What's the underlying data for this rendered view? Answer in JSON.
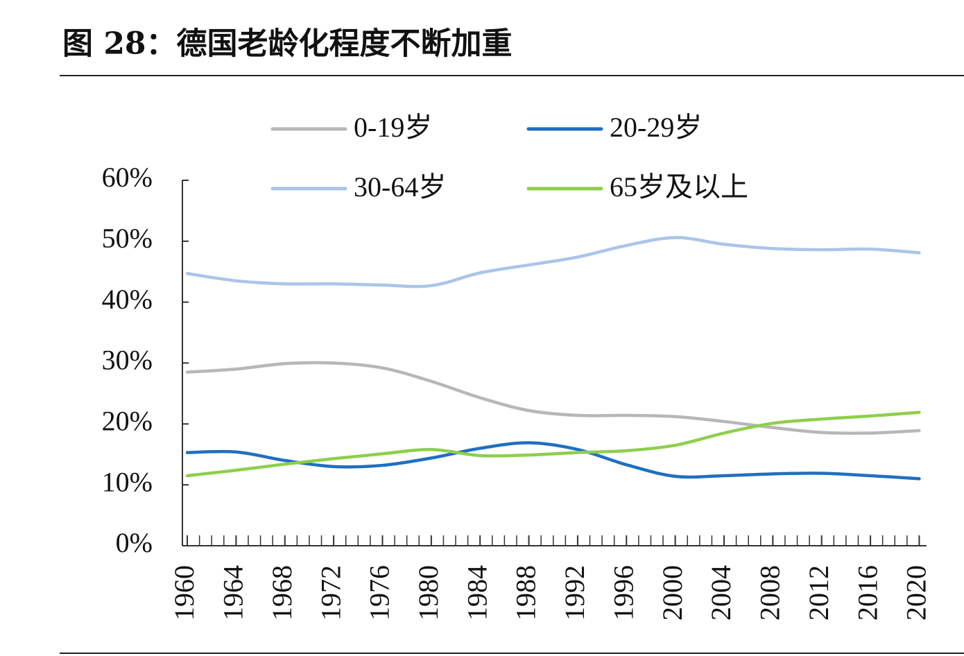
{
  "chart_data": {
    "type": "line",
    "title": "图 28：德国老龄化程度不断加重",
    "x": [
      1960,
      1964,
      1968,
      1972,
      1976,
      1980,
      1984,
      1988,
      1992,
      1996,
      2000,
      2004,
      2008,
      2012,
      2016,
      2020
    ],
    "series": [
      {
        "name": "0-19岁",
        "color": "#b7b7b7",
        "values": [
          28.5,
          29.0,
          29.9,
          30.0,
          29.2,
          27.0,
          24.3,
          22.2,
          21.4,
          21.4,
          21.2,
          20.4,
          19.4,
          18.6,
          18.5,
          18.9
        ]
      },
      {
        "name": "20-29岁",
        "color": "#1f6fc0",
        "values": [
          15.3,
          15.4,
          14.0,
          13.0,
          13.2,
          14.4,
          16.0,
          16.9,
          15.8,
          13.3,
          11.4,
          11.5,
          11.8,
          11.9,
          11.5,
          11.0
        ]
      },
      {
        "name": "30-64岁",
        "color": "#aac5e8",
        "values": [
          44.7,
          43.5,
          43.0,
          43.0,
          42.8,
          42.7,
          44.8,
          46.1,
          47.4,
          49.3,
          50.6,
          49.5,
          48.8,
          48.6,
          48.7,
          48.1
        ]
      },
      {
        "name": "65岁及以上",
        "color": "#8dcf4b",
        "values": [
          11.5,
          12.4,
          13.4,
          14.3,
          15.1,
          15.8,
          14.8,
          14.9,
          15.3,
          15.6,
          16.5,
          18.5,
          20.1,
          20.8,
          21.3,
          21.9
        ]
      }
    ],
    "xlim": [
      1959.6,
      2020.6
    ],
    "xticks": [
      1960,
      1964,
      1968,
      1972,
      1976,
      1980,
      1984,
      1988,
      1992,
      1996,
      2000,
      2004,
      2008,
      2012,
      2016,
      2020
    ],
    "ylim": [
      0,
      60
    ],
    "yticks": [
      {
        "value": 0,
        "label": "0%"
      },
      {
        "value": 10,
        "label": "10%"
      },
      {
        "value": 20,
        "label": "20%"
      },
      {
        "value": 30,
        "label": "30%"
      },
      {
        "value": 40,
        "label": "40%"
      },
      {
        "value": 50,
        "label": "50%"
      },
      {
        "value": 60,
        "label": "60%"
      }
    ]
  }
}
